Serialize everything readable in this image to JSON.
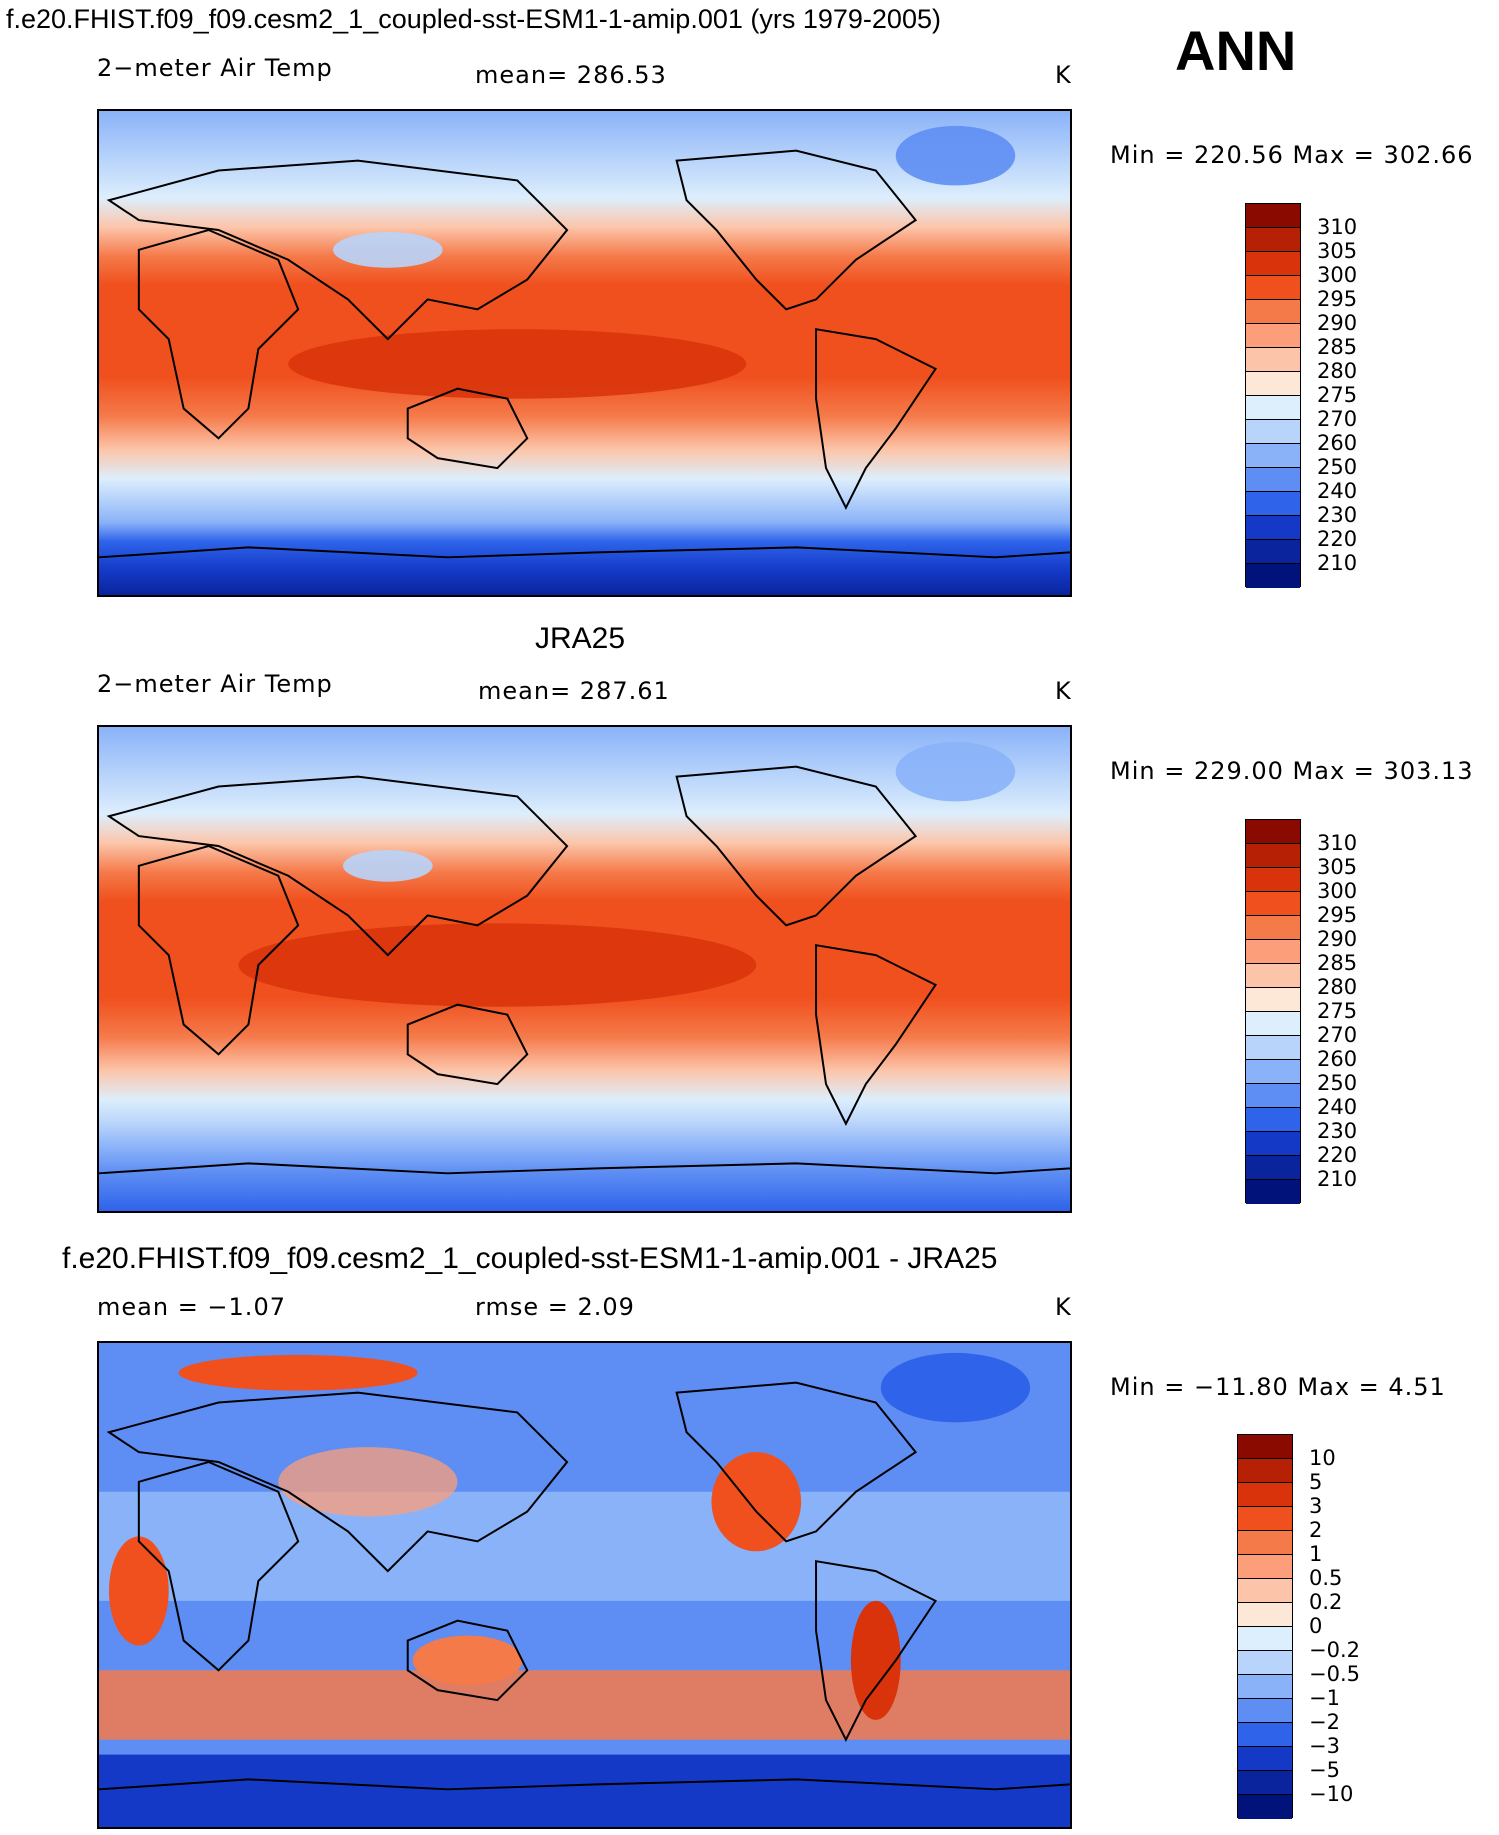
{
  "figure": {
    "title": "f.e20.FHIST.f09_f09.cesm2_1_coupled-sst-ESM1-1-amip.001 (yrs 1979-2005)",
    "season": "ANN"
  },
  "chart_data": [
    {
      "type": "heatmap",
      "subtitle_left": "2−meter Air Temp",
      "subtitle_center": "mean= 286.53",
      "units": "K",
      "minmax": "Min = 220.56 Max = 302.66",
      "min": 220.56,
      "max": 302.66,
      "colorbar_labels": [
        "310",
        "305",
        "300",
        "295",
        "290",
        "285",
        "280",
        "275",
        "270",
        "260",
        "250",
        "240",
        "230",
        "220",
        "210"
      ],
      "colorbar_colors": [
        "#8b0a00",
        "#b62004",
        "#d8330a",
        "#f0501e",
        "#f57a4a",
        "#fb9e79",
        "#fcc5aa",
        "#fde7d7",
        "#ddeefc",
        "#b8d4fb",
        "#8ab2f8",
        "#5e8ef3",
        "#2e63ea",
        "#1439c7",
        "#0a249d",
        "#01127a"
      ]
    },
    {
      "type": "heatmap",
      "title": "JRA25",
      "subtitle_left": "2−meter Air Temp",
      "subtitle_center": "mean= 287.61",
      "units": "K",
      "minmax": "Min = 229.00 Max = 303.13",
      "min": 229.0,
      "max": 303.13,
      "colorbar_labels": [
        "310",
        "305",
        "300",
        "295",
        "290",
        "285",
        "280",
        "275",
        "270",
        "260",
        "250",
        "240",
        "230",
        "220",
        "210"
      ],
      "colorbar_colors": [
        "#8b0a00",
        "#b62004",
        "#d8330a",
        "#f0501e",
        "#f57a4a",
        "#fb9e79",
        "#fcc5aa",
        "#fde7d7",
        "#ddeefc",
        "#b8d4fb",
        "#8ab2f8",
        "#5e8ef3",
        "#2e63ea",
        "#1439c7",
        "#0a249d",
        "#01127a"
      ]
    },
    {
      "type": "heatmap",
      "title": "f.e20.FHIST.f09_f09.cesm2_1_coupled-sst-ESM1-1-amip.001 - JRA25",
      "subtitle_left": "mean =   −1.07",
      "subtitle_center": "rmse =    2.09",
      "units": "K",
      "minmax": "Min = −11.80 Max =    4.51",
      "min": -11.8,
      "max": 4.51,
      "colorbar_labels": [
        "10",
        "5",
        "3",
        "2",
        "1",
        "0.5",
        "0.2",
        "0",
        "−0.2",
        "−0.5",
        "−1",
        "−2",
        "−3",
        "−5",
        "−10"
      ],
      "colorbar_colors": [
        "#8b0a00",
        "#b62004",
        "#d8330a",
        "#f0501e",
        "#f57a4a",
        "#fb9e79",
        "#fcc5aa",
        "#fde7d7",
        "#ddeefc",
        "#b8d4fb",
        "#8ab2f8",
        "#5e8ef3",
        "#2e63ea",
        "#1439c7",
        "#0a249d",
        "#01127a"
      ]
    }
  ]
}
